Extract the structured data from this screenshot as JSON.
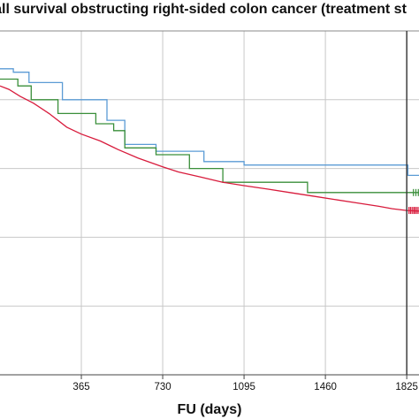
{
  "chart_data": {
    "type": "line",
    "title": "erall survival obstructing right-sided colon cancer (treatment st",
    "xlabel": "FU (days)",
    "ylabel": "",
    "xlim": [
      0,
      1880
    ],
    "ylim": [
      0,
      1.0
    ],
    "x_ticks": [
      365,
      730,
      1095,
      1460,
      1825
    ],
    "x_tick_labels": [
      "365",
      "730",
      "1095",
      "1460",
      "1825"
    ],
    "y_gridlines": [
      0.2,
      0.4,
      0.6,
      0.8
    ],
    "grid": true,
    "reference_line_x": 1825,
    "series": [
      {
        "color": "#5b9bd5",
        "steps": [
          [
            0,
            0.89
          ],
          [
            60,
            0.89
          ],
          [
            60,
            0.88
          ],
          [
            130,
            0.88
          ],
          [
            130,
            0.85
          ],
          [
            280,
            0.85
          ],
          [
            280,
            0.8
          ],
          [
            480,
            0.8
          ],
          [
            480,
            0.74
          ],
          [
            560,
            0.74
          ],
          [
            560,
            0.67
          ],
          [
            700,
            0.67
          ],
          [
            700,
            0.65
          ],
          [
            915,
            0.65
          ],
          [
            915,
            0.62
          ],
          [
            1095,
            0.62
          ],
          [
            1095,
            0.61
          ],
          [
            1830,
            0.61
          ],
          [
            1830,
            0.58
          ],
          [
            1880,
            0.58
          ]
        ],
        "censored": []
      },
      {
        "color": "#3a8f3a",
        "steps": [
          [
            0,
            0.86
          ],
          [
            80,
            0.86
          ],
          [
            80,
            0.84
          ],
          [
            140,
            0.84
          ],
          [
            140,
            0.8
          ],
          [
            260,
            0.8
          ],
          [
            260,
            0.76
          ],
          [
            430,
            0.76
          ],
          [
            430,
            0.73
          ],
          [
            510,
            0.73
          ],
          [
            510,
            0.71
          ],
          [
            560,
            0.71
          ],
          [
            560,
            0.66
          ],
          [
            700,
            0.66
          ],
          [
            700,
            0.64
          ],
          [
            850,
            0.64
          ],
          [
            850,
            0.6
          ],
          [
            1000,
            0.6
          ],
          [
            1000,
            0.56
          ],
          [
            1380,
            0.56
          ],
          [
            1380,
            0.53
          ],
          [
            1880,
            0.53
          ]
        ],
        "censored": [
          1855,
          1866,
          1877
        ]
      },
      {
        "color": "#d81b3c",
        "steps": [
          [
            0,
            0.84
          ],
          [
            40,
            0.83
          ],
          [
            90,
            0.81
          ],
          [
            150,
            0.79
          ],
          [
            220,
            0.76
          ],
          [
            300,
            0.72
          ],
          [
            365,
            0.7
          ],
          [
            450,
            0.68
          ],
          [
            530,
            0.655
          ],
          [
            620,
            0.63
          ],
          [
            730,
            0.605
          ],
          [
            800,
            0.59
          ],
          [
            900,
            0.575
          ],
          [
            1000,
            0.56
          ],
          [
            1095,
            0.55
          ],
          [
            1200,
            0.54
          ],
          [
            1300,
            0.53
          ],
          [
            1400,
            0.52
          ],
          [
            1500,
            0.51
          ],
          [
            1600,
            0.5
          ],
          [
            1700,
            0.49
          ],
          [
            1760,
            0.483
          ],
          [
            1825,
            0.478
          ],
          [
            1880,
            0.476
          ]
        ],
        "censored": [
          1835,
          1842,
          1849,
          1856,
          1862,
          1869,
          1876
        ]
      }
    ]
  }
}
